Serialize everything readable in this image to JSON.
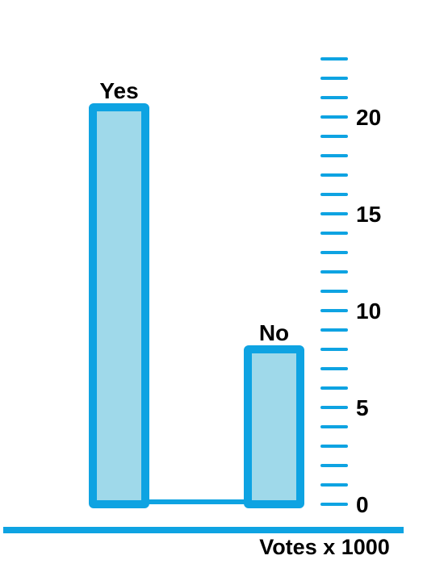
{
  "chart_data": {
    "type": "bar",
    "categories": [
      "Yes",
      "No"
    ],
    "values": [
      20.5,
      8
    ],
    "xlabel": "Votes x 1000",
    "ylabel": "",
    "ylim": [
      0,
      23
    ],
    "yticks": [
      0,
      5,
      10,
      15,
      20
    ],
    "minor_tick_step": 1,
    "grid": false,
    "legend": "none",
    "colors": {
      "bar_fill": "#9fd9ea",
      "bar_stroke": "#0ea3e2",
      "axis": "#0ea3e2",
      "text": "#000000"
    }
  }
}
